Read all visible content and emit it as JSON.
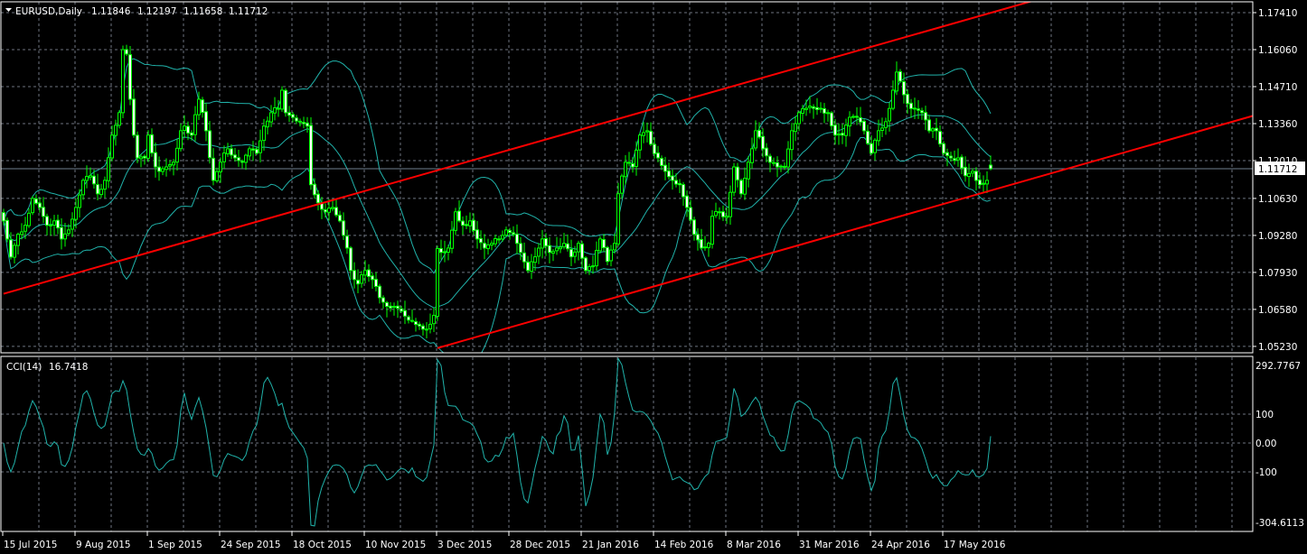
{
  "header": {
    "menu_icon": "triangle-down-icon",
    "symbol": "EURUSD,Daily",
    "open": "1.11846",
    "high": "1.12197",
    "low": "1.11658",
    "close": "1.11712"
  },
  "indicator": {
    "name": "CCI(14)",
    "value": "16.7418"
  },
  "colors": {
    "background": "#000000",
    "candle": "#00ff00",
    "bull_body": "#000000",
    "bear_body": "#ffffff",
    "bands": "#20b2aa",
    "cci": "#20b2aa",
    "trendline": "#ff0000",
    "grid": "#6e7580",
    "bid_line": "#708090"
  },
  "price_axis": {
    "labels": [
      "1.17410",
      "1.16060",
      "1.14710",
      "1.13360",
      "1.12010",
      "1.10630",
      "1.09280",
      "1.07930",
      "1.06580",
      "1.05230"
    ],
    "current_price": "1.11712"
  },
  "cci_axis": {
    "labels": [
      "292.7767",
      "100",
      "0.00",
      "-100",
      "-304.6113"
    ],
    "levels": [
      100,
      0,
      -100
    ],
    "max": 292.7767,
    "min": -304.6113
  },
  "time_axis": {
    "labels": [
      "15 Jul 2015",
      "9 Aug 2015",
      "1 Sep 2015",
      "24 Sep 2015",
      "18 Oct 2015",
      "10 Nov 2015",
      "3 Dec 2015",
      "28 Dec 2015",
      "21 Jan 2016",
      "14 Feb 2016",
      "8 Mar 2016",
      "31 Mar 2016",
      "24 Apr 2016",
      "17 May 2016"
    ]
  },
  "chart_data": {
    "type": "candlestick",
    "symbol": "EURUSD",
    "timeframe": "Daily",
    "ylim": [
      1.048,
      1.1785
    ],
    "last_bar": {
      "open": 1.11846,
      "high": 1.12197,
      "low": 1.11658,
      "close": 1.11712
    },
    "close_trace_bar_price": [
      [
        0,
        1.0981
      ],
      [
        2,
        1.0849
      ],
      [
        4,
        1.0932
      ],
      [
        6,
        1.0965
      ],
      [
        8,
        1.1063
      ],
      [
        10,
        1.103
      ],
      [
        12,
        1.0965
      ],
      [
        14,
        1.0981
      ],
      [
        16,
        1.0915
      ],
      [
        18,
        1.0948
      ],
      [
        20,
        1.103
      ],
      [
        22,
        1.1129
      ],
      [
        24,
        1.1146
      ],
      [
        26,
        1.108
      ],
      [
        28,
        1.1129
      ],
      [
        30,
        1.1294
      ],
      [
        32,
        1.1376
      ],
      [
        33,
        1.1606
      ],
      [
        34,
        1.159
      ],
      [
        35,
        1.1425
      ],
      [
        36,
        1.1294
      ],
      [
        37,
        1.1211
      ],
      [
        39,
        1.1211
      ],
      [
        40,
        1.1294
      ],
      [
        42,
        1.1178
      ],
      [
        43,
        1.1162
      ],
      [
        45,
        1.1178
      ],
      [
        47,
        1.1195
      ],
      [
        49,
        1.131
      ],
      [
        50,
        1.1327
      ],
      [
        52,
        1.1294
      ],
      [
        54,
        1.1425
      ],
      [
        56,
        1.131
      ],
      [
        58,
        1.1129
      ],
      [
        60,
        1.1195
      ],
      [
        62,
        1.1244
      ],
      [
        64,
        1.1211
      ],
      [
        66,
        1.1195
      ],
      [
        68,
        1.1244
      ],
      [
        70,
        1.1228
      ],
      [
        72,
        1.1327
      ],
      [
        74,
        1.1376
      ],
      [
        76,
        1.1392
      ],
      [
        77,
        1.1458
      ],
      [
        78,
        1.1376
      ],
      [
        80,
        1.1359
      ],
      [
        82,
        1.1343
      ],
      [
        84,
        1.1327
      ],
      [
        85,
        1.1113
      ],
      [
        87,
        1.1047
      ],
      [
        89,
        1.1014
      ],
      [
        91,
        1.103
      ],
      [
        93,
        1.0981
      ],
      [
        95,
        1.0882
      ],
      [
        96,
        1.08
      ],
      [
        98,
        1.0751
      ],
      [
        100,
        1.08
      ],
      [
        102,
        1.0767
      ],
      [
        104,
        1.0701
      ],
      [
        106,
        1.0669
      ],
      [
        108,
        1.0669
      ],
      [
        110,
        1.0652
      ],
      [
        112,
        1.0619
      ],
      [
        114,
        1.0603
      ],
      [
        116,
        1.0586
      ],
      [
        117,
        1.0586
      ],
      [
        119,
        1.0636
      ],
      [
        120,
        1.088
      ],
      [
        121,
        1.0866
      ],
      [
        123,
        1.0882
      ],
      [
        125,
        1.1014
      ],
      [
        127,
        1.0965
      ],
      [
        129,
        1.0981
      ],
      [
        131,
        1.0915
      ],
      [
        133,
        1.0882
      ],
      [
        135,
        1.0899
      ],
      [
        137,
        1.0915
      ],
      [
        139,
        1.0948
      ],
      [
        141,
        1.0932
      ],
      [
        143,
        1.0866
      ],
      [
        145,
        1.08
      ],
      [
        147,
        1.085
      ],
      [
        149,
        1.0915
      ],
      [
        151,
        1.0866
      ],
      [
        153,
        1.0882
      ],
      [
        155,
        1.0899
      ],
      [
        157,
        1.085
      ],
      [
        159,
        1.0899
      ],
      [
        161,
        1.08
      ],
      [
        163,
        1.0817
      ],
      [
        165,
        1.0915
      ],
      [
        167,
        1.0833
      ],
      [
        169,
        1.0899
      ],
      [
        170,
        1.108
      ],
      [
        172,
        1.1195
      ],
      [
        174,
        1.1178
      ],
      [
        176,
        1.1294
      ],
      [
        178,
        1.131
      ],
      [
        179,
        1.1261
      ],
      [
        181,
        1.1211
      ],
      [
        183,
        1.1162
      ],
      [
        185,
        1.1129
      ],
      [
        187,
        1.1113
      ],
      [
        189,
        1.103
      ],
      [
        191,
        1.0932
      ],
      [
        193,
        1.0882
      ],
      [
        195,
        1.0899
      ],
      [
        196,
        1.0998
      ],
      [
        198,
        1.1014
      ],
      [
        200,
        1.0998
      ],
      [
        202,
        1.1178
      ],
      [
        204,
        1.108
      ],
      [
        206,
        1.1195
      ],
      [
        208,
        1.131
      ],
      [
        210,
        1.1244
      ],
      [
        212,
        1.1195
      ],
      [
        214,
        1.1178
      ],
      [
        216,
        1.1178
      ],
      [
        218,
        1.131
      ],
      [
        220,
        1.1376
      ],
      [
        222,
        1.1392
      ],
      [
        224,
        1.1392
      ],
      [
        226,
        1.1392
      ],
      [
        228,
        1.1376
      ],
      [
        230,
        1.1294
      ],
      [
        232,
        1.1294
      ],
      [
        234,
        1.1359
      ],
      [
        236,
        1.1359
      ],
      [
        238,
        1.131
      ],
      [
        240,
        1.1228
      ],
      [
        242,
        1.131
      ],
      [
        244,
        1.1343
      ],
      [
        246,
        1.1458
      ],
      [
        247,
        1.1524
      ],
      [
        248,
        1.1491
      ],
      [
        250,
        1.1409
      ],
      [
        252,
        1.1392
      ],
      [
        254,
        1.1376
      ],
      [
        256,
        1.131
      ],
      [
        258,
        1.131
      ],
      [
        260,
        1.1228
      ],
      [
        262,
        1.1211
      ],
      [
        264,
        1.1211
      ],
      [
        266,
        1.1146
      ],
      [
        268,
        1.1162
      ],
      [
        270,
        1.1113
      ],
      [
        272,
        1.1129
      ],
      [
        273,
        1.11712
      ]
    ],
    "bands": {
      "period": 20,
      "deviations": 2
    },
    "cci_period": 14,
    "trendlines": [
      {
        "from": [
          0,
          1.0715
        ],
        "to": [
          282,
          1.1774
        ]
      },
      {
        "from": [
          120,
          1.0517
        ],
        "to": [
          346,
          1.1366
        ]
      }
    ]
  }
}
